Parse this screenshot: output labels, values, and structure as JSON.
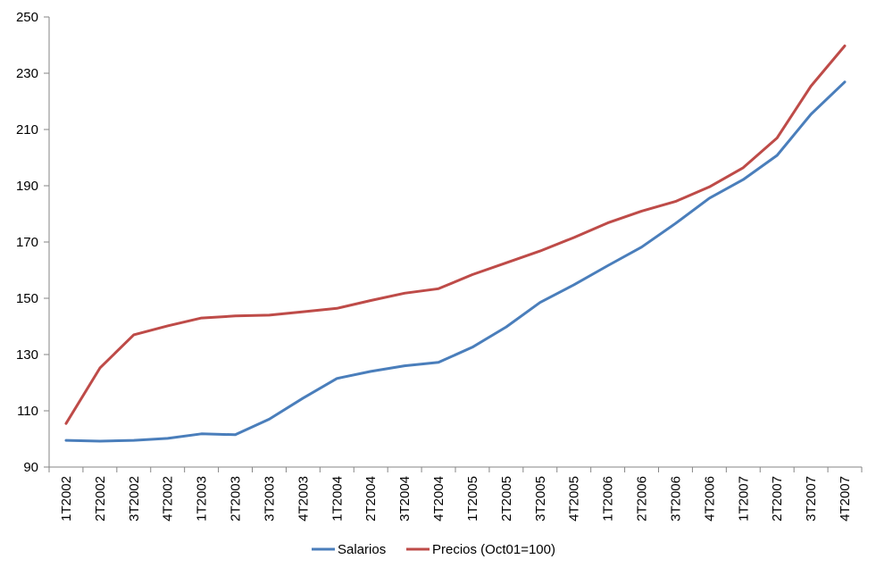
{
  "chart_data": {
    "type": "line",
    "title": "",
    "xlabel": "",
    "ylabel": "",
    "ylim": [
      90,
      250
    ],
    "yticks": [
      90,
      110,
      130,
      150,
      170,
      190,
      210,
      230,
      250
    ],
    "grid": false,
    "legend_position": "bottom",
    "categories": [
      "1T2002",
      "2T2002",
      "3T2002",
      "4T2002",
      "1T2003",
      "2T2003",
      "3T2003",
      "4T2003",
      "1T2004",
      "2T2004",
      "3T2004",
      "4T2004",
      "1T2005",
      "2T2005",
      "3T2005",
      "4T2005",
      "1T2006",
      "2T2006",
      "3T2006",
      "4T2006",
      "1T2007",
      "2T2007",
      "3T2007",
      "4T2007"
    ],
    "series": [
      {
        "name": "Salarios",
        "color": "#4a7ebb",
        "values": [
          99.5,
          99.2,
          99.5,
          100.2,
          101.8,
          101.5,
          107,
          114.5,
          121.5,
          124,
          126,
          127.2,
          132.6,
          139.8,
          148.5,
          154.8,
          161.6,
          168.2,
          176.6,
          185.6,
          192.2,
          200.8,
          215.4,
          226.9
        ]
      },
      {
        "name": "Precios (Oct01=100)",
        "color": "#be4b48",
        "values": [
          105.5,
          125.2,
          137,
          140.2,
          143,
          143.7,
          144,
          145.2,
          146.4,
          149.2,
          151.8,
          153.4,
          158.4,
          162.6,
          166.8,
          171.6,
          176.8,
          181,
          184.4,
          189.6,
          196.4,
          207,
          225.4,
          239.7
        ]
      }
    ]
  }
}
